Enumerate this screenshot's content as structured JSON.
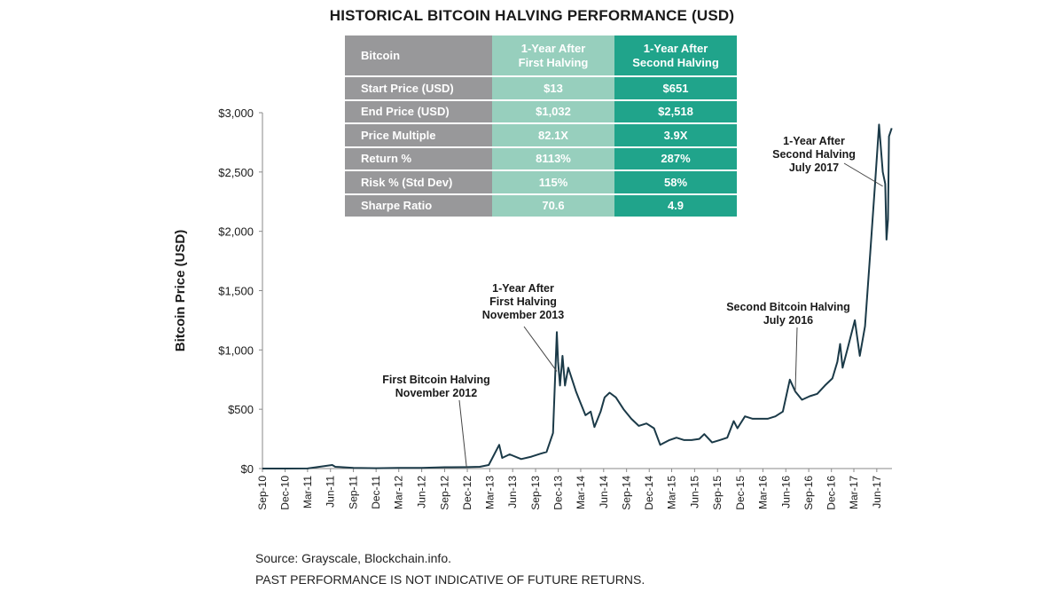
{
  "title": "HISTORICAL BITCOIN HALVING PERFORMANCE (USD)",
  "table": {
    "headers": [
      "Bitcoin",
      [
        "1-Year After",
        "First Halving"
      ],
      [
        "1-Year After",
        "Second Halving"
      ]
    ],
    "rows": [
      [
        "Start Price (USD)",
        "$13",
        "$651"
      ],
      [
        "End Price (USD)",
        "$1,032",
        "$2,518"
      ],
      [
        "Price Multiple",
        "82.1X",
        "3.9X"
      ],
      [
        "Return %",
        "8113%",
        "287%"
      ],
      [
        "Risk % (Std Dev)",
        "115%",
        "58%"
      ],
      [
        "Sharpe Ratio",
        "70.6",
        "4.9"
      ]
    ],
    "colors": {
      "label_col": "#98989a",
      "first_col": "#97cfbd",
      "second_col": "#20a48b"
    }
  },
  "source": "Source: Grayscale, Blockchain.info.",
  "disclaimer": "PAST PERFORMANCE IS NOT INDICATIVE OF FUTURE RETURNS.",
  "chart_data": {
    "type": "line",
    "ylabel": "Bitcoin Price (USD)",
    "xlabel": "",
    "ylim": [
      0,
      3000
    ],
    "yticks": [
      0,
      500,
      1000,
      1500,
      2000,
      2500,
      3000
    ],
    "ytick_labels": [
      "$0",
      "$500",
      "$1,000",
      "$1,500",
      "$2,000",
      "$2,500",
      "$3,000"
    ],
    "xlim": [
      "2010-09",
      "2017-07"
    ],
    "xtick_labels": [
      "Sep-10",
      "Dec-10",
      "Mar-11",
      "Jun-11",
      "Sep-11",
      "Dec-11",
      "Mar-12",
      "Jun-12",
      "Sep-12",
      "Dec-12",
      "Mar-13",
      "Jun-13",
      "Sep-13",
      "Dec-13",
      "Mar-14",
      "Jun-14",
      "Sep-14",
      "Dec-14",
      "Mar-15",
      "Jun-15",
      "Sep-15",
      "Dec-15",
      "Mar-16",
      "Jun-16",
      "Sep-16",
      "Dec-16",
      "Mar-17",
      "Jun-17"
    ],
    "line_color": "#1b3a48",
    "series": [
      {
        "x": [
          "2010-09-01",
          "2010-12-01",
          "2011-03-01",
          "2011-06-08",
          "2011-06-20",
          "2011-09-01",
          "2011-12-01",
          "2012-03-01",
          "2012-06-01",
          "2012-09-01",
          "2012-11-28",
          "2012-12-15",
          "2013-01-20",
          "2013-02-25",
          "2013-04-08",
          "2013-04-20",
          "2013-05-20",
          "2013-07-05",
          "2013-08-15",
          "2013-09-20",
          "2013-10-15",
          "2013-11-10",
          "2013-11-25",
          "2013-11-30",
          "2013-12-08",
          "2013-12-18",
          "2013-12-28",
          "2014-01-10",
          "2014-02-10",
          "2014-02-25",
          "2014-03-20",
          "2014-04-10",
          "2014-04-25",
          "2014-05-20",
          "2014-06-05",
          "2014-06-25",
          "2014-07-20",
          "2014-08-20",
          "2014-09-20",
          "2014-10-20",
          "2014-11-20",
          "2014-12-20",
          "2015-01-14",
          "2015-02-20",
          "2015-03-20",
          "2015-04-20",
          "2015-05-20",
          "2015-06-20",
          "2015-07-10",
          "2015-08-10",
          "2015-09-10",
          "2015-10-10",
          "2015-11-05",
          "2015-11-20",
          "2015-12-20",
          "2016-01-20",
          "2016-02-20",
          "2016-03-20",
          "2016-04-20",
          "2016-05-20",
          "2016-06-17",
          "2016-07-09",
          "2016-08-05",
          "2016-09-05",
          "2016-10-05",
          "2016-11-05",
          "2016-12-05",
          "2016-12-25",
          "2017-01-05",
          "2017-01-15",
          "2017-02-05",
          "2017-03-05",
          "2017-03-25",
          "2017-04-15",
          "2017-05-05",
          "2017-05-25",
          "2017-06-10",
          "2017-06-25",
          "2017-07-05",
          "2017-07-10",
          "2017-07-16",
          "2017-07-20",
          "2017-07-31"
        ],
        "y": [
          0.1,
          0.3,
          0.9,
          30,
          15,
          5,
          3,
          5,
          6,
          11,
          12,
          13,
          15,
          30,
          200,
          90,
          120,
          80,
          100,
          125,
          140,
          300,
          1150,
          900,
          700,
          950,
          700,
          850,
          650,
          570,
          450,
          480,
          350,
          480,
          600,
          640,
          600,
          500,
          420,
          360,
          380,
          340,
          200,
          240,
          260,
          240,
          240,
          250,
          290,
          220,
          240,
          260,
          400,
          340,
          440,
          420,
          420,
          420,
          440,
          480,
          750,
          650,
          580,
          610,
          630,
          700,
          760,
          900,
          1050,
          850,
          1020,
          1250,
          950,
          1200,
          1800,
          2400,
          2900,
          2500,
          2400,
          1930,
          2100,
          2800,
          2870
        ]
      }
    ],
    "annotations": [
      {
        "text": [
          "First Bitcoin Halving",
          "November 2012"
        ],
        "x": "2012-11-28",
        "y": 12
      },
      {
        "text": [
          "1-Year After",
          "First Halving",
          "November 2013"
        ],
        "x": "2013-11-25",
        "y": 820
      },
      {
        "text": [
          "Second Bitcoin Halving",
          "July 2016"
        ],
        "x": "2016-07-09",
        "y": 650
      },
      {
        "text": [
          "1-Year After",
          "Second Halving",
          "July 2017"
        ],
        "x": "2017-06-25",
        "y": 2380
      }
    ],
    "grid": false
  }
}
